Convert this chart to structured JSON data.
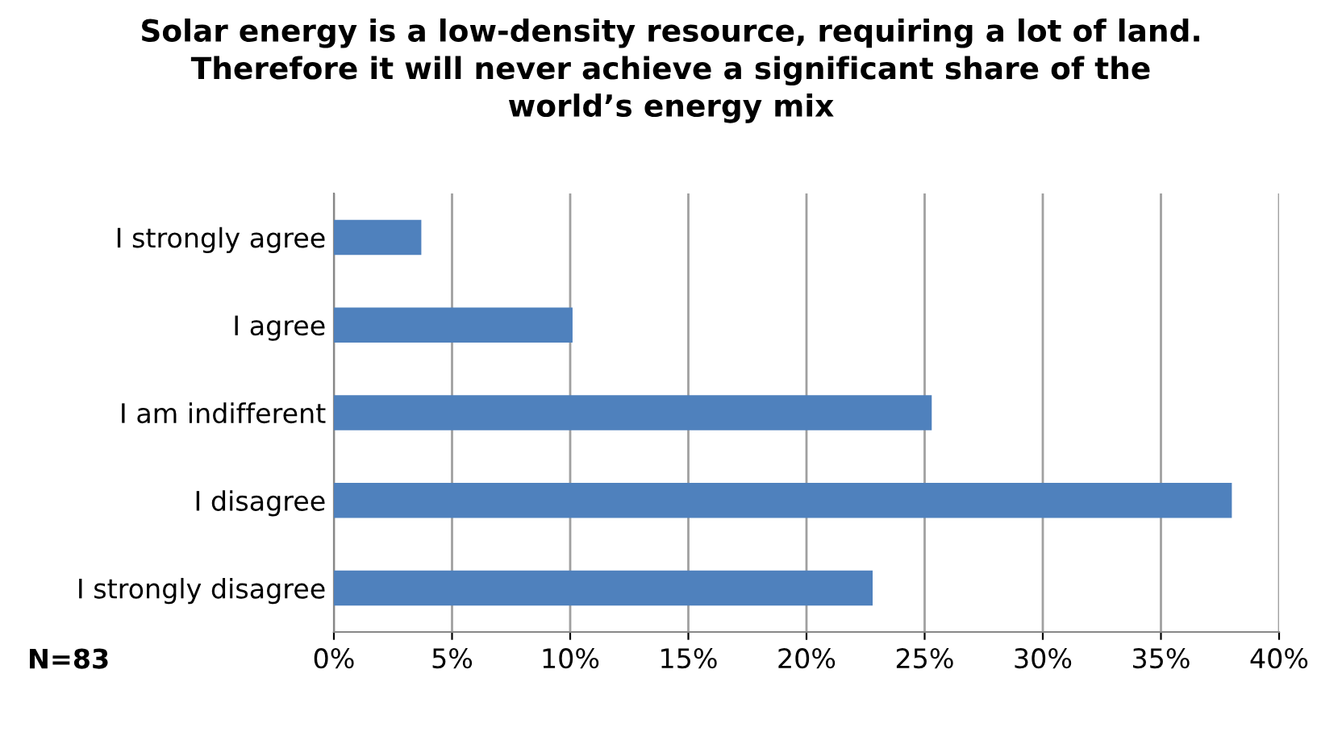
{
  "chart_data": {
    "type": "bar",
    "orientation": "horizontal",
    "title": "Solar energy is a low-density resource, requiring a lot of land.\nTherefore it will never achieve a significant share of the\nworld’s energy mix",
    "categories": [
      "I strongly agree",
      "I agree",
      "I am indifferent",
      "I disagree",
      "I strongly disagree"
    ],
    "values": [
      3.7,
      10.1,
      25.3,
      38.0,
      22.8
    ],
    "color": "#4f81bd",
    "xlim": [
      0,
      40
    ],
    "xticks": [
      {
        "value": 0,
        "label": "0%"
      },
      {
        "value": 5,
        "label": "5%"
      },
      {
        "value": 10,
        "label": "10%"
      },
      {
        "value": 15,
        "label": "15%"
      },
      {
        "value": 20,
        "label": "20%"
      },
      {
        "value": 25,
        "label": "25%"
      },
      {
        "value": 30,
        "label": "30%"
      },
      {
        "value": 35,
        "label": "35%"
      },
      {
        "value": 40,
        "label": "40%"
      }
    ],
    "grid": "x",
    "annotations": [
      "N=83"
    ]
  }
}
